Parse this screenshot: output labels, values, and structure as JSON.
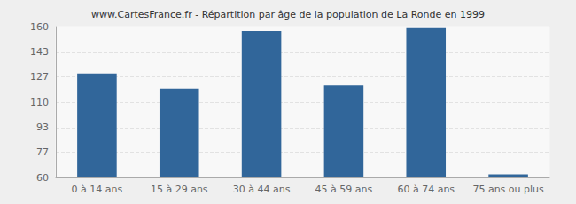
{
  "chart_data": {
    "type": "bar",
    "title": "www.CartesFrance.fr - Répartition par âge de la population de La Ronde en 1999",
    "categories": [
      "0 à 14 ans",
      "15 à 29 ans",
      "30 à 44 ans",
      "45 à 59 ans",
      "60 à 74 ans",
      "75 ans ou plus"
    ],
    "values": [
      129,
      119,
      157,
      121,
      159,
      62
    ],
    "color": "#31669a",
    "ylim": [
      60,
      160
    ],
    "yticks": [
      60,
      77,
      93,
      110,
      127,
      143,
      160
    ],
    "grid": true
  }
}
